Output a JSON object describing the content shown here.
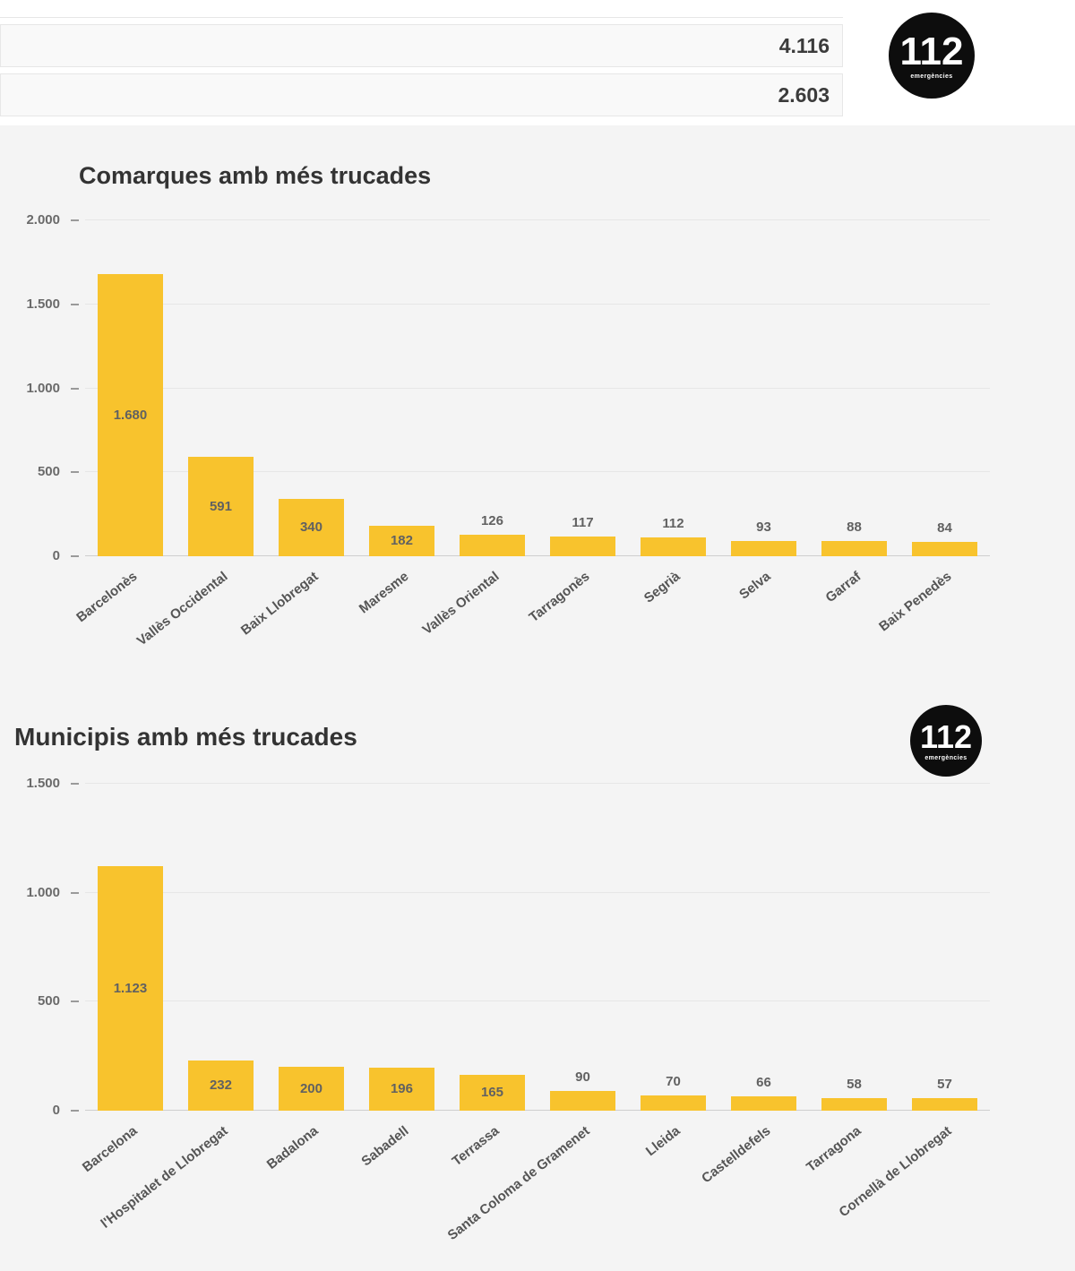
{
  "logo": {
    "number": "112",
    "caption": "emergències"
  },
  "header": {
    "rows": [
      {
        "value": "4.116"
      },
      {
        "value": "2.603"
      }
    ]
  },
  "chart_data": [
    {
      "type": "bar",
      "title": "Comarques amb més trucades",
      "categories": [
        "Barcelonès",
        "Vallès Occidental",
        "Baix Llobregat",
        "Maresme",
        "Vallès Oriental",
        "Tarragonès",
        "Segrià",
        "Selva",
        "Garraf",
        "Baix Penedès"
      ],
      "values": [
        1680,
        591,
        340,
        182,
        126,
        117,
        112,
        93,
        88,
        84
      ],
      "value_labels": [
        "1.680",
        "591",
        "340",
        "182",
        "126",
        "117",
        "112",
        "93",
        "88",
        "84"
      ],
      "xlabel": "",
      "ylabel": "",
      "ylim": [
        0,
        2000
      ],
      "yticks": [
        {
          "value": 0,
          "label": "0"
        },
        {
          "value": 500,
          "label": "500"
        },
        {
          "value": 1000,
          "label": "1.000"
        },
        {
          "value": 1500,
          "label": "1.500"
        },
        {
          "value": 2000,
          "label": "2.000"
        }
      ],
      "bar_color": "#f8c32d",
      "grid": true,
      "legend": false
    },
    {
      "type": "bar",
      "title": "Municipis amb més trucades",
      "categories": [
        "Barcelona",
        "l'Hospitalet de Llobregat",
        "Badalona",
        "Sabadell",
        "Terrassa",
        "Santa Coloma de Gramenet",
        "Lleida",
        "Castelldefels",
        "Tarragona",
        "Cornellà de Llobregat"
      ],
      "values": [
        1123,
        232,
        200,
        196,
        165,
        90,
        70,
        66,
        58,
        57
      ],
      "value_labels": [
        "1.123",
        "232",
        "200",
        "196",
        "165",
        "90",
        "70",
        "66",
        "58",
        "57"
      ],
      "xlabel": "",
      "ylabel": "",
      "ylim": [
        0,
        1500
      ],
      "yticks": [
        {
          "value": 0,
          "label": "0"
        },
        {
          "value": 500,
          "label": "500"
        },
        {
          "value": 1000,
          "label": "1.000"
        },
        {
          "value": 1500,
          "label": "1.500"
        }
      ],
      "bar_color": "#f8c32d",
      "grid": true,
      "legend": false
    }
  ]
}
